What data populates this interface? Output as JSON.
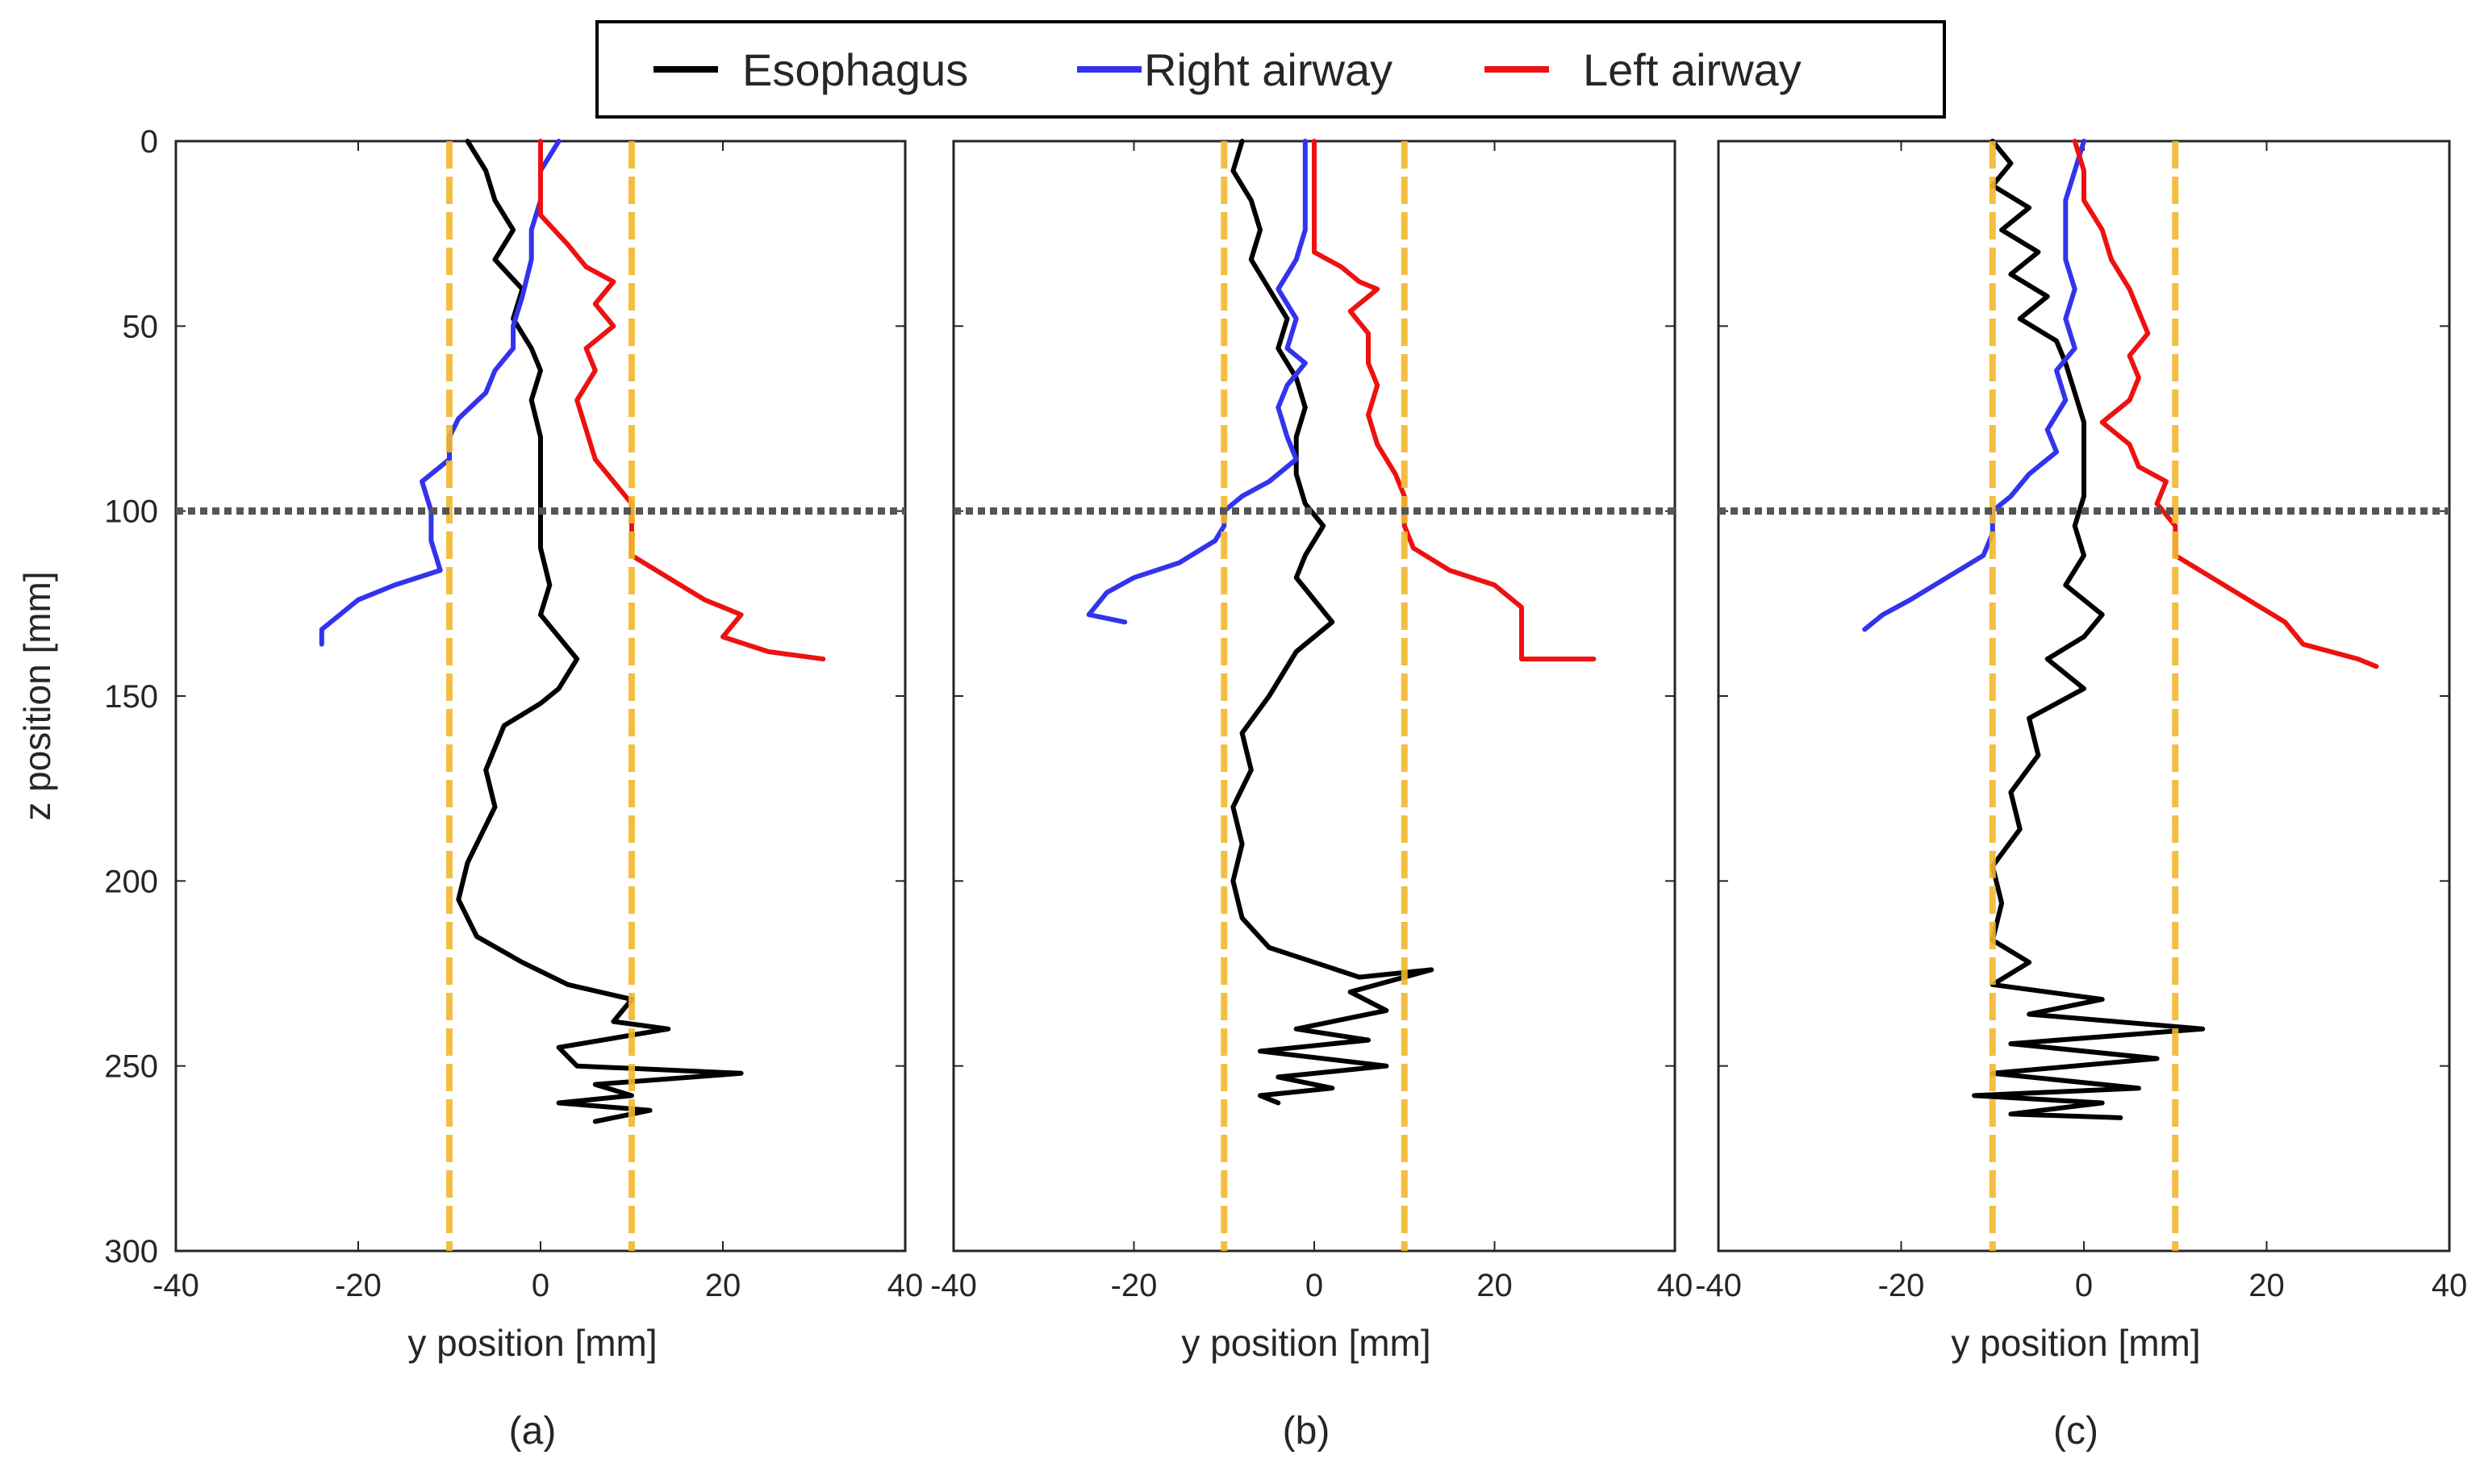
{
  "legend": {
    "items": [
      {
        "label": "Esophagus",
        "color": "#000000"
      },
      {
        "label": "Right airway",
        "color": "#3333ee"
      },
      {
        "label": "Left airway",
        "color": "#ee1111"
      }
    ]
  },
  "axes": {
    "xlabel": "y position [mm]",
    "ylabel": "z position [mm]",
    "x_ticks": [
      -40,
      -20,
      0,
      20,
      40
    ],
    "y_ticks": [
      0,
      50,
      100,
      150,
      200,
      250,
      300
    ],
    "xlim": [
      -40,
      40
    ],
    "ylim": [
      0,
      300
    ],
    "y_reversed": true
  },
  "reference_lines": {
    "vertical_dashed_y": [
      -10,
      10
    ],
    "vertical_color": "#f2b82e",
    "horizontal_dotted_z": 100,
    "horizontal_color": "#555555"
  },
  "chart_data": [
    {
      "type": "line",
      "panel_label": "(a)",
      "xlabel": "y position [mm]",
      "ylabel": "z position [mm]",
      "xlim": [
        -40,
        40
      ],
      "ylim": [
        0,
        300
      ],
      "series": [
        {
          "name": "Esophagus",
          "color": "#000000",
          "points": [
            [
              -8,
              0
            ],
            [
              -6,
              8
            ],
            [
              -5,
              16
            ],
            [
              -3,
              24
            ],
            [
              -5,
              32
            ],
            [
              -2,
              40
            ],
            [
              -3,
              48
            ],
            [
              -1,
              56
            ],
            [
              0,
              62
            ],
            [
              -1,
              70
            ],
            [
              0,
              80
            ],
            [
              0,
              90
            ],
            [
              0,
              100
            ],
            [
              0,
              110
            ],
            [
              1,
              120
            ],
            [
              0,
              128
            ],
            [
              2,
              134
            ],
            [
              4,
              140
            ],
            [
              2,
              148
            ],
            [
              0,
              152
            ],
            [
              -4,
              158
            ],
            [
              -6,
              170
            ],
            [
              -5,
              180
            ],
            [
              -8,
              195
            ],
            [
              -9,
              205
            ],
            [
              -7,
              215
            ],
            [
              -2,
              222
            ],
            [
              3,
              228
            ],
            [
              10,
              232
            ],
            [
              8,
              238
            ],
            [
              14,
              240
            ],
            [
              2,
              245
            ],
            [
              4,
              250
            ],
            [
              22,
              252
            ],
            [
              6,
              255
            ],
            [
              10,
              258
            ],
            [
              2,
              260
            ],
            [
              12,
              262
            ],
            [
              6,
              265
            ]
          ]
        },
        {
          "name": "Right airway",
          "color": "#3333ee",
          "points": [
            [
              2,
              0
            ],
            [
              0,
              8
            ],
            [
              0,
              16
            ],
            [
              -1,
              24
            ],
            [
              -1,
              32
            ],
            [
              -2,
              42
            ],
            [
              -3,
              50
            ],
            [
              -3,
              56
            ],
            [
              -5,
              62
            ],
            [
              -6,
              68
            ],
            [
              -9,
              75
            ],
            [
              -10,
              80
            ],
            [
              -10,
              86
            ],
            [
              -13,
              92
            ],
            [
              -12,
              100
            ],
            [
              -12,
              108
            ],
            [
              -11,
              116
            ],
            [
              -16,
              120
            ],
            [
              -20,
              124
            ],
            [
              -22,
              128
            ],
            [
              -24,
              132
            ],
            [
              -24,
              136
            ]
          ]
        },
        {
          "name": "Left airway",
          "color": "#ee1111",
          "points": [
            [
              0,
              0
            ],
            [
              0,
              8
            ],
            [
              0,
              16
            ],
            [
              0,
              20
            ],
            [
              3,
              28
            ],
            [
              5,
              34
            ],
            [
              8,
              38
            ],
            [
              6,
              44
            ],
            [
              8,
              50
            ],
            [
              5,
              56
            ],
            [
              6,
              62
            ],
            [
              4,
              70
            ],
            [
              5,
              78
            ],
            [
              6,
              86
            ],
            [
              8,
              92
            ],
            [
              10,
              98
            ],
            [
              10,
              104
            ],
            [
              10,
              112
            ],
            [
              14,
              118
            ],
            [
              18,
              124
            ],
            [
              22,
              128
            ],
            [
              20,
              134
            ],
            [
              25,
              138
            ],
            [
              31,
              140
            ]
          ]
        }
      ]
    },
    {
      "type": "line",
      "panel_label": "(b)",
      "xlabel": "y position [mm]",
      "ylabel": "",
      "xlim": [
        -40,
        40
      ],
      "ylim": [
        0,
        300
      ],
      "series": [
        {
          "name": "Esophagus",
          "color": "#000000",
          "points": [
            [
              -8,
              0
            ],
            [
              -9,
              8
            ],
            [
              -7,
              16
            ],
            [
              -6,
              24
            ],
            [
              -7,
              32
            ],
            [
              -5,
              40
            ],
            [
              -3,
              48
            ],
            [
              -4,
              56
            ],
            [
              -2,
              64
            ],
            [
              -1,
              72
            ],
            [
              -2,
              80
            ],
            [
              -2,
              90
            ],
            [
              -1,
              98
            ],
            [
              1,
              104
            ],
            [
              -1,
              112
            ],
            [
              -2,
              118
            ],
            [
              0,
              124
            ],
            [
              2,
              130
            ],
            [
              -2,
              138
            ],
            [
              -5,
              150
            ],
            [
              -8,
              160
            ],
            [
              -7,
              170
            ],
            [
              -9,
              180
            ],
            [
              -8,
              190
            ],
            [
              -9,
              200
            ],
            [
              -8,
              210
            ],
            [
              -5,
              218
            ],
            [
              0,
              222
            ],
            [
              5,
              226
            ],
            [
              13,
              224
            ],
            [
              4,
              230
            ],
            [
              8,
              235
            ],
            [
              -2,
              240
            ],
            [
              6,
              243
            ],
            [
              -6,
              246
            ],
            [
              8,
              250
            ],
            [
              -4,
              253
            ],
            [
              2,
              256
            ],
            [
              -6,
              258
            ],
            [
              -4,
              260
            ]
          ]
        },
        {
          "name": "Right airway",
          "color": "#3333ee",
          "points": [
            [
              -1,
              0
            ],
            [
              -1,
              8
            ],
            [
              -1,
              16
            ],
            [
              -1,
              24
            ],
            [
              -2,
              32
            ],
            [
              -4,
              40
            ],
            [
              -2,
              48
            ],
            [
              -3,
              56
            ],
            [
              -1,
              60
            ],
            [
              -3,
              66
            ],
            [
              -4,
              72
            ],
            [
              -3,
              80
            ],
            [
              -2,
              86
            ],
            [
              -5,
              92
            ],
            [
              -8,
              96
            ],
            [
              -10,
              100
            ],
            [
              -10,
              104
            ],
            [
              -11,
              108
            ],
            [
              -15,
              114
            ],
            [
              -20,
              118
            ],
            [
              -23,
              122
            ],
            [
              -25,
              128
            ],
            [
              -21,
              130
            ]
          ]
        },
        {
          "name": "Left airway",
          "color": "#ee1111",
          "points": [
            [
              0,
              0
            ],
            [
              0,
              8
            ],
            [
              0,
              16
            ],
            [
              0,
              24
            ],
            [
              0,
              30
            ],
            [
              3,
              34
            ],
            [
              5,
              38
            ],
            [
              7,
              40
            ],
            [
              4,
              46
            ],
            [
              6,
              52
            ],
            [
              6,
              60
            ],
            [
              7,
              66
            ],
            [
              6,
              74
            ],
            [
              7,
              82
            ],
            [
              9,
              90
            ],
            [
              10,
              96
            ],
            [
              10,
              104
            ],
            [
              11,
              110
            ],
            [
              15,
              116
            ],
            [
              20,
              120
            ],
            [
              23,
              126
            ],
            [
              23,
              134
            ],
            [
              23,
              140
            ],
            [
              31,
              140
            ]
          ]
        }
      ]
    },
    {
      "type": "line",
      "panel_label": "(c)",
      "xlabel": "y position [mm]",
      "ylabel": "",
      "xlim": [
        -40,
        40
      ],
      "ylim": [
        0,
        300
      ],
      "series": [
        {
          "name": "Esophagus",
          "color": "#000000",
          "points": [
            [
              -10,
              0
            ],
            [
              -8,
              6
            ],
            [
              -10,
              12
            ],
            [
              -6,
              18
            ],
            [
              -9,
              24
            ],
            [
              -5,
              30
            ],
            [
              -8,
              36
            ],
            [
              -4,
              42
            ],
            [
              -7,
              48
            ],
            [
              -3,
              54
            ],
            [
              -2,
              60
            ],
            [
              -1,
              68
            ],
            [
              0,
              76
            ],
            [
              0,
              86
            ],
            [
              0,
              96
            ],
            [
              -1,
              104
            ],
            [
              0,
              112
            ],
            [
              -2,
              120
            ],
            [
              2,
              128
            ],
            [
              0,
              134
            ],
            [
              -4,
              140
            ],
            [
              0,
              148
            ],
            [
              -6,
              156
            ],
            [
              -5,
              166
            ],
            [
              -8,
              176
            ],
            [
              -7,
              186
            ],
            [
              -10,
              196
            ],
            [
              -9,
              206
            ],
            [
              -10,
              216
            ],
            [
              -6,
              222
            ],
            [
              -10,
              228
            ],
            [
              2,
              232
            ],
            [
              -6,
              236
            ],
            [
              13,
              240
            ],
            [
              -8,
              244
            ],
            [
              8,
              248
            ],
            [
              -10,
              252
            ],
            [
              6,
              256
            ],
            [
              -12,
              258
            ],
            [
              2,
              260
            ],
            [
              -8,
              263
            ],
            [
              4,
              264
            ]
          ]
        },
        {
          "name": "Right airway",
          "color": "#3333ee",
          "points": [
            [
              0,
              0
            ],
            [
              -1,
              8
            ],
            [
              -2,
              16
            ],
            [
              -2,
              24
            ],
            [
              -2,
              32
            ],
            [
              -1,
              40
            ],
            [
              -2,
              48
            ],
            [
              -1,
              56
            ],
            [
              -3,
              62
            ],
            [
              -2,
              70
            ],
            [
              -4,
              78
            ],
            [
              -3,
              84
            ],
            [
              -6,
              90
            ],
            [
              -8,
              96
            ],
            [
              -10,
              100
            ],
            [
              -10,
              106
            ],
            [
              -11,
              112
            ],
            [
              -15,
              118
            ],
            [
              -19,
              124
            ],
            [
              -22,
              128
            ],
            [
              -24,
              132
            ]
          ]
        },
        {
          "name": "Left airway",
          "color": "#ee1111",
          "points": [
            [
              -1,
              0
            ],
            [
              0,
              8
            ],
            [
              0,
              16
            ],
            [
              2,
              24
            ],
            [
              3,
              32
            ],
            [
              5,
              40
            ],
            [
              6,
              46
            ],
            [
              7,
              52
            ],
            [
              5,
              58
            ],
            [
              6,
              64
            ],
            [
              5,
              70
            ],
            [
              2,
              76
            ],
            [
              5,
              82
            ],
            [
              6,
              88
            ],
            [
              9,
              92
            ],
            [
              8,
              98
            ],
            [
              10,
              104
            ],
            [
              10,
              112
            ],
            [
              14,
              118
            ],
            [
              18,
              124
            ],
            [
              22,
              130
            ],
            [
              24,
              136
            ],
            [
              30,
              140
            ],
            [
              32,
              142
            ]
          ]
        }
      ]
    }
  ]
}
